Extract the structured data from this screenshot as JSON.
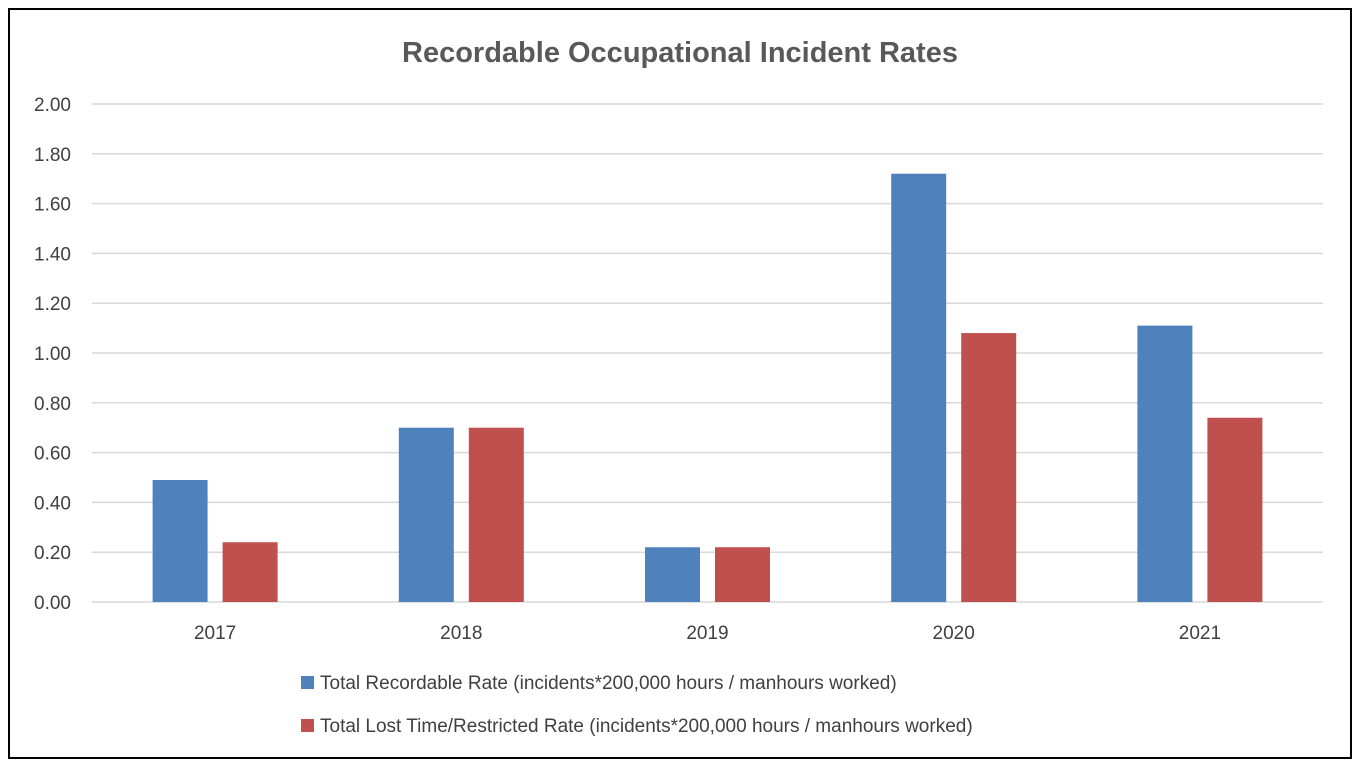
{
  "chart_data": {
    "type": "bar",
    "title": "Recordable Occupational Incident Rates",
    "xlabel": "",
    "ylabel": "",
    "categories": [
      "2017",
      "2018",
      "2019",
      "2020",
      "2021"
    ],
    "ylim": [
      0,
      2.0
    ],
    "yticks": [
      "0.00",
      "0.20",
      "0.40",
      "0.60",
      "0.80",
      "1.00",
      "1.20",
      "1.40",
      "1.60",
      "1.80",
      "2.00"
    ],
    "grid": true,
    "legend_position": "bottom",
    "series": [
      {
        "name": "Total Recordable Rate (incidents*200,000 hours / manhours worked)",
        "color": "#4f81bd",
        "values": [
          0.49,
          0.7,
          0.22,
          1.72,
          1.11
        ]
      },
      {
        "name": "Total Lost Time/Restricted  Rate (incidents*200,000 hours / manhours worked)",
        "color": "#c0504d",
        "values": [
          0.24,
          0.7,
          0.22,
          1.08,
          0.74
        ]
      }
    ]
  }
}
